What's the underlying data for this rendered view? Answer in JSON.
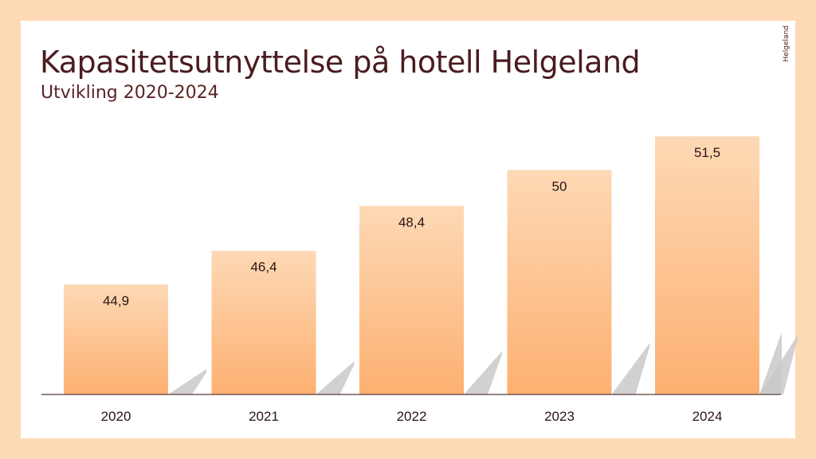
{
  "chart_data": {
    "type": "bar",
    "title": "Kapasitetsutnyttelse på hotell Helgeland",
    "subtitle": "Utvikling 2020-2024",
    "categories": [
      "2020",
      "2021",
      "2022",
      "2023",
      "2024"
    ],
    "values": [
      44.9,
      46.4,
      48.4,
      50,
      51.5
    ],
    "value_labels": [
      "44,9",
      "46,4",
      "48,4",
      "50",
      "51,5"
    ],
    "xlabel": "",
    "ylabel": "",
    "ylim": [
      40,
      52
    ],
    "grid": false,
    "legend": "none",
    "colors": {
      "bar_top": "#fdd9b5",
      "bar_bottom": "#fdb071",
      "shadow": "#c9c9c9",
      "axis": "#5a3a3a"
    }
  },
  "logo": {
    "text": "Helgeland",
    "icon": "helgeland-logo-icon"
  }
}
